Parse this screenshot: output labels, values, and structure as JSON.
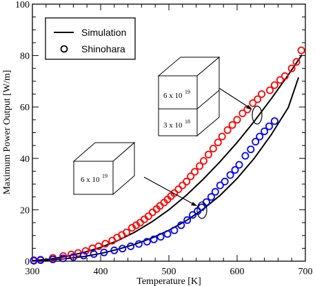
{
  "chart_data": {
    "type": "line",
    "xlabel": "Temperature [K]",
    "ylabel": "Maximum Power Output [W/m]",
    "xlim": [
      300,
      700
    ],
    "ylim": [
      0,
      100
    ],
    "x_ticks": [
      300,
      400,
      500,
      600,
      700
    ],
    "y_ticks": [
      0,
      20,
      40,
      60,
      80,
      100
    ],
    "grid": false,
    "legend": {
      "position": "top-left",
      "entries": [
        {
          "label": "Simulation",
          "marker": "line",
          "color": "#000000"
        },
        {
          "label": "Shinohara",
          "marker": "circle",
          "color": "#000000"
        }
      ]
    },
    "series": [
      {
        "kind": "simulation",
        "color": "#000000",
        "x": [
          300,
          325,
          350,
          375,
          400,
          425,
          450,
          475,
          500,
          525,
          550,
          575,
          600,
          625,
          650,
          675,
          695
        ],
        "y": [
          0.2,
          0.8,
          1.9,
          3.4,
          5.4,
          8.0,
          11.3,
          15.3,
          20.0,
          25.5,
          31.8,
          38.7,
          46.2,
          54.4,
          63.2,
          72.5,
          80.3
        ]
      },
      {
        "kind": "simulation",
        "color": "#000000",
        "x": [
          300,
          325,
          350,
          375,
          400,
          425,
          450,
          475,
          500,
          525,
          550,
          575,
          600,
          625,
          650,
          675,
          690
        ],
        "y": [
          0.1,
          0.4,
          1.0,
          1.8,
          3.0,
          4.6,
          6.6,
          9.0,
          12.0,
          15.7,
          20.2,
          25.6,
          32.2,
          40.0,
          49.2,
          59.8,
          71.5
        ]
      },
      {
        "kind": "measurement",
        "color": "#ff0000",
        "x": [
          302,
          312,
          330,
          345,
          357,
          367,
          378,
          388,
          397,
          407,
          417,
          424,
          431,
          438,
          446,
          452,
          458,
          464,
          470,
          476,
          482,
          487,
          493,
          498,
          503,
          508,
          514,
          520,
          526,
          532,
          538,
          545,
          551,
          558,
          565,
          572,
          578,
          586,
          593,
          600,
          608,
          615,
          623,
          630,
          636,
          648,
          655,
          663,
          670,
          680,
          687,
          694
        ],
        "y": [
          0.4,
          0.6,
          1.3,
          2.0,
          2.6,
          3.2,
          4.0,
          5.0,
          5.8,
          6.8,
          8.0,
          9.2,
          10.2,
          11.2,
          13.0,
          14.0,
          15.0,
          16.3,
          17.5,
          19.0,
          20.3,
          21.5,
          22.8,
          24.0,
          25.3,
          26.5,
          28.0,
          29.5,
          31.0,
          33.0,
          34.8,
          37.0,
          39.0,
          41.5,
          43.8,
          46.2,
          48.5,
          51.0,
          53.0,
          55.0,
          57.5,
          59.0,
          61.5,
          63.0,
          65.0,
          66.5,
          68.5,
          70.5,
          72.0,
          75.0,
          77.5,
          82.0
        ]
      },
      {
        "kind": "measurement",
        "color": "#0000ff",
        "x": [
          302,
          312,
          330,
          345,
          360,
          375,
          390,
          405,
          420,
          432,
          444,
          456,
          468,
          478,
          488,
          498,
          508,
          518,
          527,
          535,
          542,
          548,
          555,
          562,
          568,
          575,
          582,
          590,
          597,
          603,
          612,
          620,
          627,
          633,
          640,
          647,
          655
        ],
        "y": [
          0.2,
          0.4,
          0.7,
          1.1,
          1.6,
          2.2,
          2.8,
          3.4,
          4.2,
          4.9,
          5.8,
          6.7,
          7.6,
          8.5,
          9.5,
          10.6,
          12.0,
          14.0,
          16.0,
          18.0,
          19.5,
          21.0,
          23.0,
          25.0,
          27.0,
          29.5,
          31.0,
          33.5,
          35.5,
          37.5,
          41.0,
          43.5,
          46.5,
          48.5,
          50.5,
          52.5,
          54.5
        ]
      }
    ],
    "annotations": [
      {
        "kind": "box",
        "layers": [
          {
            "mantissa": "6 x 10",
            "exponent": "19"
          }
        ],
        "points_to": {
          "x": 548,
          "y": 19
        }
      },
      {
        "kind": "box",
        "layers": [
          {
            "mantissa": "6 x 10",
            "exponent": "19"
          },
          {
            "mantissa": "3 x 10",
            "exponent": "18"
          }
        ],
        "points_to": {
          "x": 628,
          "y": 57
        }
      }
    ]
  }
}
